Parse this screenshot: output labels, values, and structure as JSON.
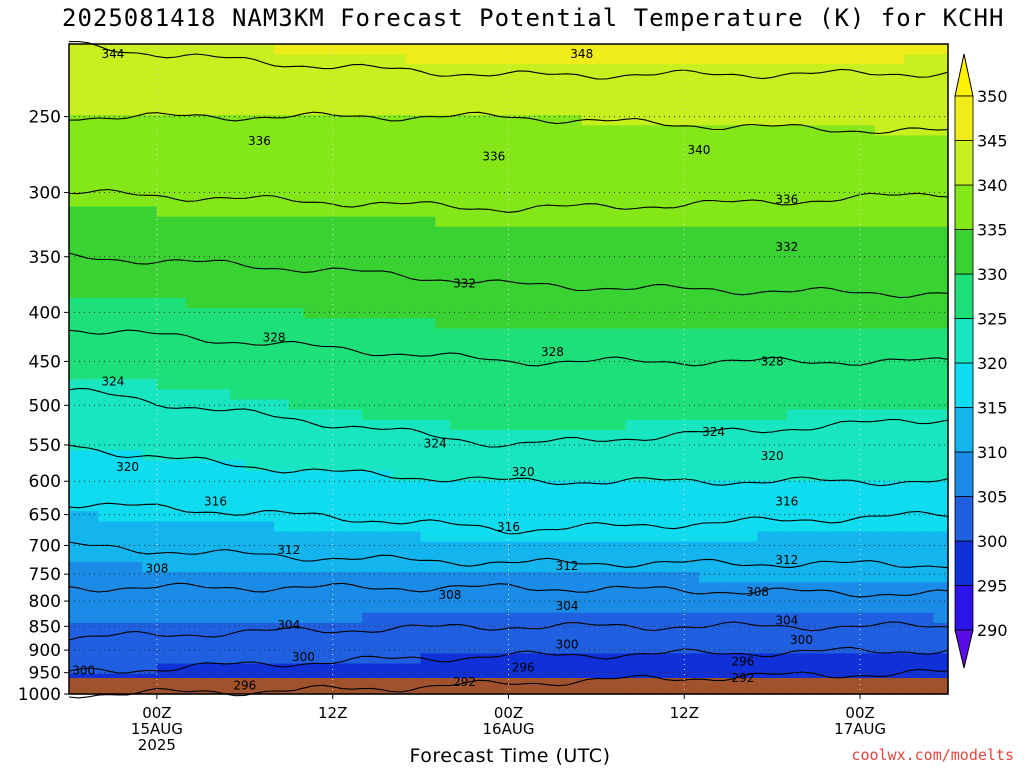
{
  "page": {
    "title": "2025081418 NAM3KM Forecast Potential Temperature (K) for KCHH",
    "credit": "coolwx.com/modelts"
  },
  "chart_data": {
    "type": "heatmap",
    "title": "2025081418 NAM3KM Forecast Potential Temperature (K) for KCHH",
    "xlabel": "Forecast Time (UTC)",
    "ylabel": "",
    "x_ticks": [
      {
        "hour": 6,
        "lines": [
          "00Z",
          "15AUG",
          "2025"
        ]
      },
      {
        "hour": 18,
        "lines": [
          "12Z"
        ]
      },
      {
        "hour": 30,
        "lines": [
          "00Z",
          "16AUG"
        ]
      },
      {
        "hour": 42,
        "lines": [
          "12Z"
        ]
      },
      {
        "hour": 54,
        "lines": [
          "00Z",
          "17AUG"
        ]
      }
    ],
    "x_range_hours": [
      0,
      60
    ],
    "y_scale": "log-pressure",
    "y_range_hpa": [
      1000,
      210
    ],
    "y_ticks": [
      250,
      300,
      350,
      400,
      450,
      500,
      550,
      600,
      650,
      700,
      750,
      800,
      850,
      900,
      950,
      1000
    ],
    "colorbar_levels": [
      290,
      295,
      300,
      305,
      310,
      315,
      320,
      325,
      330,
      335,
      340,
      345,
      350
    ],
    "colorbar_colors": [
      "#5a0ce6",
      "#2a14e8",
      "#1030d8",
      "#1f5fe0",
      "#1a8be6",
      "#14b4ee",
      "#10dcf0",
      "#18e6c0",
      "#1ee078",
      "#3ad232",
      "#84e818",
      "#c8f01e",
      "#f0ec1a",
      "#fff200"
    ],
    "contour_levels": [
      292,
      296,
      300,
      304,
      308,
      312,
      316,
      320,
      324,
      328,
      332,
      336,
      340,
      344,
      348
    ],
    "profiles": [
      {
        "hour": 0,
        "levels_hpa": {
          "1000": 296,
          "950": 300,
          "900": 303,
          "850": 305,
          "800": 307,
          "750": 309,
          "700": 312,
          "650": 315,
          "600": 318,
          "550": 320,
          "500": 323,
          "450": 326,
          "400": 329,
          "350": 332,
          "300": 336,
          "250": 340,
          "210": 344
        }
      },
      {
        "hour": 30,
        "levels_hpa": {
          "1000": 295,
          "950": 297,
          "900": 301,
          "850": 304,
          "800": 306,
          "750": 310,
          "700": 315,
          "650": 317,
          "600": 320,
          "550": 324,
          "500": 327,
          "450": 328,
          "400": 331,
          "350": 333,
          "300": 337,
          "250": 340,
          "210": 347
        }
      },
      {
        "hour": 60,
        "levels_hpa": {
          "1000": 293,
          "950": 296,
          "900": 300,
          "850": 304,
          "800": 307,
          "750": 311,
          "700": 314,
          "650": 316,
          "600": 320,
          "550": 322,
          "500": 325,
          "450": 328,
          "400": 331,
          "350": 334,
          "300": 336,
          "250": 341,
          "210": 346
        }
      }
    ],
    "contour_labels": [
      {
        "value": "344",
        "hour": 3,
        "p": 215
      },
      {
        "value": "348",
        "hour": 35,
        "p": 215
      },
      {
        "value": "336",
        "hour": 13,
        "p": 265
      },
      {
        "value": "336",
        "hour": 29,
        "p": 275
      },
      {
        "value": "340",
        "hour": 43,
        "p": 271
      },
      {
        "value": "336",
        "hour": 49,
        "p": 305
      },
      {
        "value": "332",
        "hour": 49,
        "p": 342
      },
      {
        "value": "332",
        "hour": 27,
        "p": 373
      },
      {
        "value": "328",
        "hour": 14,
        "p": 425
      },
      {
        "value": "328",
        "hour": 33,
        "p": 440
      },
      {
        "value": "328",
        "hour": 48,
        "p": 450
      },
      {
        "value": "324",
        "hour": 3,
        "p": 472
      },
      {
        "value": "324",
        "hour": 25,
        "p": 548
      },
      {
        "value": "324",
        "hour": 44,
        "p": 533
      },
      {
        "value": "320",
        "hour": 4,
        "p": 580
      },
      {
        "value": "320",
        "hour": 31,
        "p": 587
      },
      {
        "value": "320",
        "hour": 48,
        "p": 565
      },
      {
        "value": "316",
        "hour": 10,
        "p": 630
      },
      {
        "value": "316",
        "hour": 30,
        "p": 670
      },
      {
        "value": "316",
        "hour": 49,
        "p": 630
      },
      {
        "value": "312",
        "hour": 15,
        "p": 708
      },
      {
        "value": "312",
        "hour": 34,
        "p": 735
      },
      {
        "value": "312",
        "hour": 49,
        "p": 725
      },
      {
        "value": "308",
        "hour": 6,
        "p": 740
      },
      {
        "value": "308",
        "hour": 26,
        "p": 788
      },
      {
        "value": "308",
        "hour": 47,
        "p": 783
      },
      {
        "value": "304",
        "hour": 15,
        "p": 847
      },
      {
        "value": "304",
        "hour": 34,
        "p": 810
      },
      {
        "value": "304",
        "hour": 49,
        "p": 838
      },
      {
        "value": "300",
        "hour": 1,
        "p": 945
      },
      {
        "value": "300",
        "hour": 16,
        "p": 915
      },
      {
        "value": "300",
        "hour": 34,
        "p": 888
      },
      {
        "value": "300",
        "hour": 50,
        "p": 878
      },
      {
        "value": "296",
        "hour": 12,
        "p": 980
      },
      {
        "value": "296",
        "hour": 31,
        "p": 938
      },
      {
        "value": "296",
        "hour": 46,
        "p": 925
      },
      {
        "value": "292",
        "hour": 27,
        "p": 972
      },
      {
        "value": "292",
        "hour": 46,
        "p": 962
      }
    ]
  }
}
